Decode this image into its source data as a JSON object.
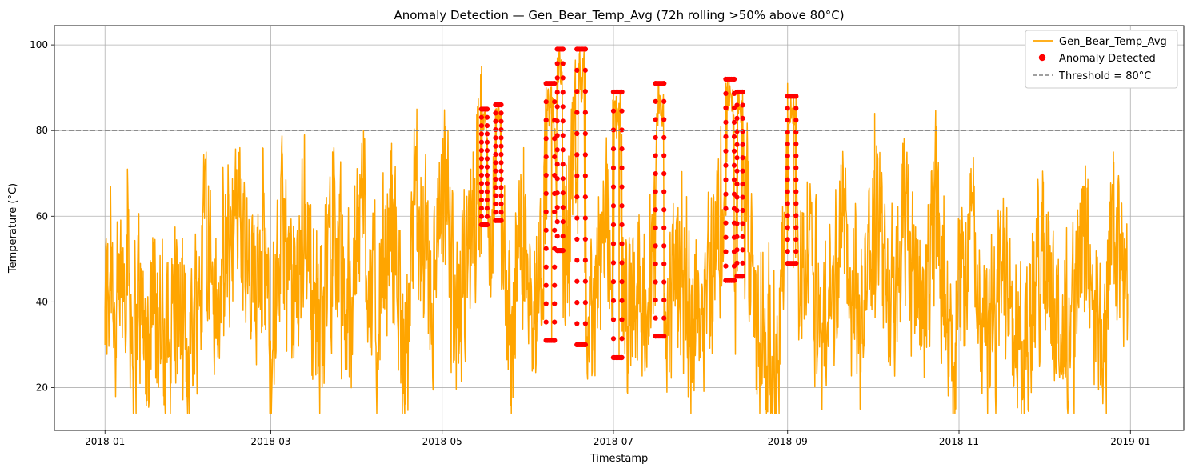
{
  "chart_data": {
    "type": "line",
    "title": "Anomaly Detection — Gen_Bear_Temp_Avg (72h rolling >50% above 80°C)",
    "xlabel": "Timestamp",
    "ylabel": "Temperature (°C)",
    "xlim": [
      "2017-12-14",
      "2019-01-20"
    ],
    "ylim": [
      10,
      104.5
    ],
    "grid": true,
    "legend_position": "top-right",
    "x_ticks": [
      "2018-01",
      "2018-03",
      "2018-05",
      "2018-07",
      "2018-09",
      "2018-11",
      "2019-01"
    ],
    "y_ticks": [
      20,
      40,
      60,
      80,
      100
    ],
    "threshold": {
      "name": "Threshold = 80°C",
      "value": 80,
      "color": "#808080",
      "style": "dashed"
    },
    "series": [
      {
        "name": "Gen_Bear_Temp_Avg",
        "type": "line",
        "color": "#FFA500",
        "x_start": "2018-01-01",
        "x_end": "2018-12-31",
        "points": [
          [
            "2018-01-01",
            38
          ],
          [
            "2018-01-02",
            44
          ],
          [
            "2018-01-03",
            67
          ],
          [
            "2018-01-05",
            27
          ],
          [
            "2018-01-07",
            48
          ],
          [
            "2018-01-09",
            71
          ],
          [
            "2018-01-11",
            20
          ],
          [
            "2018-01-13",
            45
          ],
          [
            "2018-01-16",
            17
          ],
          [
            "2018-01-18",
            55
          ],
          [
            "2018-01-22",
            16
          ],
          [
            "2018-01-26",
            45
          ],
          [
            "2018-01-30",
            18
          ],
          [
            "2018-02-03",
            42
          ],
          [
            "2018-02-06",
            75
          ],
          [
            "2018-02-10",
            30
          ],
          [
            "2018-02-14",
            65
          ],
          [
            "2018-02-18",
            76
          ],
          [
            "2018-02-22",
            35
          ],
          [
            "2018-02-26",
            76
          ],
          [
            "2018-03-01",
            18
          ],
          [
            "2018-03-05",
            75
          ],
          [
            "2018-03-09",
            30
          ],
          [
            "2018-03-13",
            79
          ],
          [
            "2018-03-18",
            25
          ],
          [
            "2018-03-23",
            75
          ],
          [
            "2018-03-28",
            32
          ],
          [
            "2018-04-03",
            80
          ],
          [
            "2018-04-08",
            28
          ],
          [
            "2018-04-13",
            77
          ],
          [
            "2018-04-18",
            20
          ],
          [
            "2018-04-22",
            85
          ],
          [
            "2018-04-27",
            35
          ],
          [
            "2018-05-02",
            81
          ],
          [
            "2018-05-07",
            28
          ],
          [
            "2018-05-12",
            75
          ],
          [
            "2018-05-15",
            95
          ],
          [
            "2018-05-18",
            58
          ],
          [
            "2018-05-20",
            85
          ],
          [
            "2018-05-22",
            60
          ],
          [
            "2018-05-25",
            30
          ],
          [
            "2018-05-30",
            76
          ],
          [
            "2018-06-03",
            35
          ],
          [
            "2018-06-07",
            90
          ],
          [
            "2018-06-09",
            31
          ],
          [
            "2018-06-11",
            97
          ],
          [
            "2018-06-13",
            52
          ],
          [
            "2018-06-16",
            85
          ],
          [
            "2018-06-19",
            99
          ],
          [
            "2018-06-21",
            30
          ],
          [
            "2018-06-25",
            45
          ],
          [
            "2018-07-01",
            89
          ],
          [
            "2018-07-03",
            27
          ],
          [
            "2018-07-08",
            55
          ],
          [
            "2018-07-13",
            35
          ],
          [
            "2018-07-17",
            91
          ],
          [
            "2018-07-19",
            32
          ],
          [
            "2018-07-24",
            62
          ],
          [
            "2018-07-30",
            30
          ],
          [
            "2018-08-05",
            60
          ],
          [
            "2018-08-10",
            91
          ],
          [
            "2018-08-13",
            46
          ],
          [
            "2018-08-16",
            89
          ],
          [
            "2018-08-20",
            32
          ],
          [
            "2018-08-25",
            28
          ],
          [
            "2018-08-28",
            14
          ],
          [
            "2018-09-01",
            91
          ],
          [
            "2018-09-03",
            48
          ],
          [
            "2018-09-08",
            68
          ],
          [
            "2018-09-14",
            25
          ],
          [
            "2018-09-20",
            72
          ],
          [
            "2018-09-27",
            30
          ],
          [
            "2018-10-02",
            84
          ],
          [
            "2018-10-07",
            35
          ],
          [
            "2018-10-12",
            77
          ],
          [
            "2018-10-18",
            30
          ],
          [
            "2018-10-24",
            81
          ],
          [
            "2018-10-30",
            25
          ],
          [
            "2018-11-05",
            70
          ],
          [
            "2018-11-12",
            20
          ],
          [
            "2018-11-18",
            62
          ],
          [
            "2018-11-24",
            18
          ],
          [
            "2018-12-01",
            68
          ],
          [
            "2018-12-08",
            22
          ],
          [
            "2018-12-15",
            65
          ],
          [
            "2018-12-22",
            20
          ],
          [
            "2018-12-26",
            70
          ],
          [
            "2018-12-31",
            42
          ]
        ]
      },
      {
        "name": "Anomaly Detected",
        "type": "scatter",
        "color": "#FF0000",
        "segments": [
          {
            "start": "2018-05-15",
            "end": "2018-05-17",
            "min": 58,
            "max": 85
          },
          {
            "start": "2018-05-20",
            "end": "2018-05-22",
            "min": 59,
            "max": 86
          },
          {
            "start": "2018-06-07",
            "end": "2018-06-10",
            "min": 31,
            "max": 91
          },
          {
            "start": "2018-06-11",
            "end": "2018-06-13",
            "min": 52,
            "max": 99
          },
          {
            "start": "2018-06-18",
            "end": "2018-06-21",
            "min": 30,
            "max": 99
          },
          {
            "start": "2018-07-01",
            "end": "2018-07-04",
            "min": 27,
            "max": 89
          },
          {
            "start": "2018-07-16",
            "end": "2018-07-19",
            "min": 32,
            "max": 91
          },
          {
            "start": "2018-08-10",
            "end": "2018-08-13",
            "min": 45,
            "max": 92
          },
          {
            "start": "2018-08-14",
            "end": "2018-08-16",
            "min": 46,
            "max": 89
          },
          {
            "start": "2018-09-01",
            "end": "2018-09-04",
            "min": 49,
            "max": 88
          }
        ]
      }
    ]
  }
}
